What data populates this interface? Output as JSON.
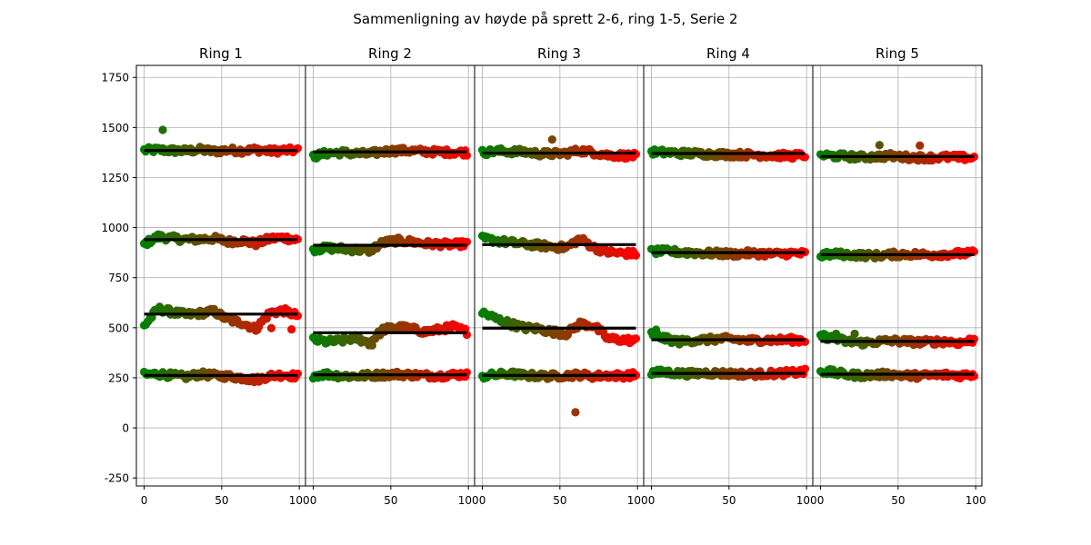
{
  "figure": {
    "title": "Sammenligning av høyde på sprett 2-6, ring 1-5, Serie 2"
  },
  "chart_data": {
    "type": "scatter",
    "title": "Sammenligning av høyde på sprett 2-6, ring 1-5, Serie 2",
    "shared_y": true,
    "ylim": [
      -290,
      1810
    ],
    "yticks": [
      -250,
      0,
      250,
      500,
      750,
      1000,
      1250,
      1500,
      1750
    ],
    "xlim": [
      -5,
      104
    ],
    "xticks": [
      0,
      50,
      100
    ],
    "grid": true,
    "color_gradient": {
      "start": "#008000",
      "end": "#ff0000",
      "by": "index"
    },
    "mean_line_color": "#000000",
    "n_points": 100,
    "panels": [
      {
        "title": "Ring 1",
        "series": [
          {
            "mean": 1385,
            "values": [
              1386,
              1388,
              1385,
              1383,
              1389,
              1381,
              1387,
              1384,
              1390,
              1382,
              1386,
              1385
            ]
          },
          {
            "mean": 940,
            "values": [
              918,
              955,
              947,
              940,
              942,
              946,
              930,
              935,
              920,
              945,
              950,
              938
            ]
          },
          {
            "mean": 568,
            "values": [
              510,
              595,
              578,
              565,
              572,
              582,
              540,
              525,
              495,
              575,
              585,
              560
            ]
          },
          {
            "mean": 262,
            "values": [
              265,
              270,
              262,
              255,
              268,
              262,
              258,
              250,
              240,
              260,
              265,
              258
            ]
          }
        ],
        "outliers": [
          {
            "x": 12,
            "y": 1488
          },
          {
            "x": 82,
            "y": 498
          },
          {
            "x": 95,
            "y": 492
          }
        ]
      },
      {
        "title": "Ring 2",
        "series": [
          {
            "mean": 1378,
            "values": [
              1355,
              1372,
              1375,
              1370,
              1368,
              1380,
              1385,
              1383,
              1380,
              1378,
              1376,
              1375
            ]
          },
          {
            "mean": 912,
            "values": [
              890,
              898,
              895,
              890,
              885,
              925,
              935,
              930,
              920,
              918,
              915,
              920
            ]
          },
          {
            "mean": 475,
            "values": [
              440,
              430,
              435,
              450,
              425,
              490,
              505,
              495,
              480,
              490,
              505,
              480
            ]
          },
          {
            "mean": 265,
            "values": [
              262,
              268,
              260,
              258,
              262,
              265,
              268,
              265,
              262,
              260,
              265,
              268
            ]
          }
        ],
        "outliers": [
          {
            "x": 38,
            "y": 412
          }
        ]
      },
      {
        "title": "Ring 3",
        "series": [
          {
            "mean": 1372,
            "values": [
              1375,
              1382,
              1380,
              1378,
              1370,
              1368,
              1372,
              1385,
              1375,
              1362,
              1360,
              1358
            ]
          },
          {
            "mean": 915,
            "values": [
              945,
              935,
              925,
              918,
              912,
              905,
              900,
              945,
              900,
              878,
              872,
              870
            ]
          },
          {
            "mean": 498,
            "values": [
              575,
              545,
              520,
              500,
              495,
              480,
              470,
              520,
              510,
              445,
              440,
              435
            ]
          },
          {
            "mean": 262,
            "values": [
              258,
              265,
              270,
              262,
              260,
              258,
              262,
              265,
              258,
              262,
              260,
              265
            ]
          }
        ],
        "outliers": [
          {
            "x": 45,
            "y": 1440
          },
          {
            "x": 60,
            "y": 78
          }
        ]
      },
      {
        "title": "Ring 4",
        "series": [
          {
            "mean": 1370,
            "values": [
              1378,
              1375,
              1372,
              1370,
              1368,
              1366,
              1365,
              1364,
              1362,
              1360,
              1358,
              1362
            ]
          },
          {
            "mean": 875,
            "values": [
              880,
              882,
              878,
              875,
              872,
              870,
              868,
              872,
              870,
              868,
              872,
              870
            ]
          },
          {
            "mean": 440,
            "values": [
              470,
              445,
              430,
              438,
              440,
              445,
              442,
              435,
              440,
              438,
              440,
              438
            ]
          },
          {
            "mean": 272,
            "values": [
              275,
              278,
              272,
              270,
              275,
              272,
              270,
              268,
              270,
              272,
              275,
              280
            ]
          }
        ],
        "outliers": [
          {
            "x": 3,
            "y": 490
          }
        ]
      },
      {
        "title": "Ring 5",
        "series": [
          {
            "mean": 1355,
            "values": [
              1362,
              1358,
              1355,
              1352,
              1355,
              1358,
              1352,
              1350,
              1350,
              1352,
              1350,
              1348
            ]
          },
          {
            "mean": 865,
            "values": [
              862,
              868,
              865,
              862,
              860,
              865,
              868,
              866,
              865,
              868,
              870,
              872
            ]
          },
          {
            "mean": 432,
            "values": [
              460,
              445,
              430,
              425,
              430,
              435,
              432,
              428,
              430,
              432,
              425,
              440
            ]
          },
          {
            "mean": 268,
            "values": [
              285,
              275,
              265,
              262,
              265,
              268,
              262,
              260,
              262,
              265,
              262,
              268
            ]
          }
        ],
        "outliers": [
          {
            "x": 38,
            "y": 1412
          },
          {
            "x": 64,
            "y": 1410
          },
          {
            "x": 10,
            "y": 470
          },
          {
            "x": 22,
            "y": 470
          }
        ]
      }
    ]
  }
}
